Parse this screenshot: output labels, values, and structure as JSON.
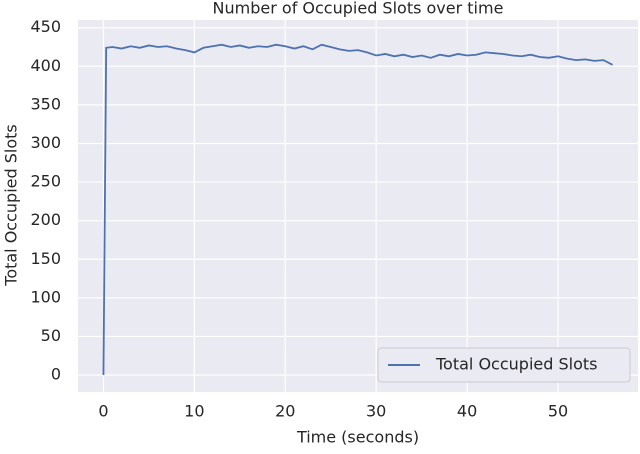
{
  "chart_data": {
    "type": "line",
    "title": "Number of Occupied Slots over time",
    "x_label": "Time (seconds)",
    "y_label": "Total Occupied Slots",
    "x": [
      0,
      0.3,
      1,
      2,
      3,
      4,
      5,
      6,
      7,
      8,
      9,
      10,
      11,
      12,
      13,
      14,
      15,
      16,
      17,
      18,
      19,
      20,
      21,
      22,
      23,
      24,
      25,
      26,
      27,
      28,
      29,
      30,
      31,
      32,
      33,
      34,
      35,
      36,
      37,
      38,
      39,
      40,
      41,
      42,
      43,
      44,
      45,
      46,
      47,
      48,
      49,
      50,
      51,
      52,
      53,
      54,
      55,
      56
    ],
    "series": [
      {
        "name": "Total Occupied Slots",
        "color": "#4c72b0",
        "values": [
          0,
          424,
          425,
          423,
          426,
          424,
          427,
          425,
          426,
          423,
          421,
          418,
          424,
          426,
          428,
          425,
          427,
          424,
          426,
          425,
          428,
          426,
          423,
          426,
          422,
          428,
          425,
          422,
          420,
          421,
          418,
          414,
          416,
          413,
          415,
          412,
          414,
          411,
          415,
          413,
          416,
          414,
          415,
          418,
          417,
          416,
          414,
          413,
          415,
          412,
          411,
          413,
          410,
          408,
          409,
          407,
          408,
          402
        ]
      }
    ],
    "xlim": [
      -2.8,
      58.8
    ],
    "ylim": [
      -22,
      460
    ],
    "xticks": [
      0,
      10,
      20,
      30,
      40,
      50
    ],
    "yticks": [
      0,
      50,
      100,
      150,
      200,
      250,
      300,
      350,
      400,
      450
    ],
    "grid": true,
    "legend": "lower right"
  }
}
